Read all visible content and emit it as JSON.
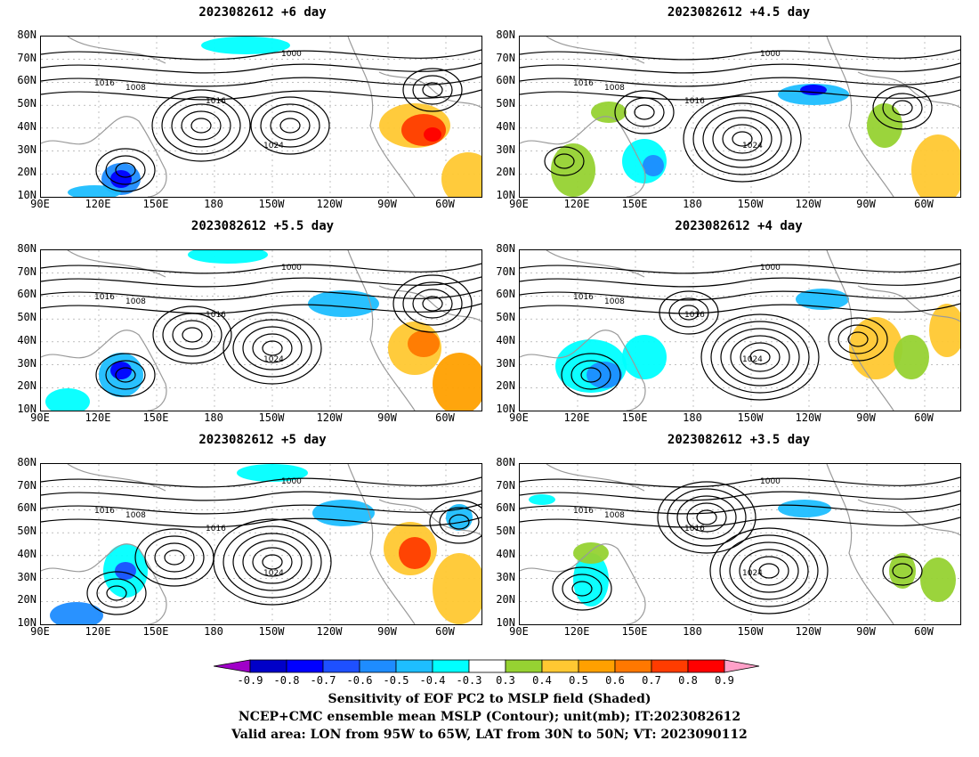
{
  "panels": [
    {
      "id": "p6",
      "title": "2023082612 +6 day"
    },
    {
      "id": "p45",
      "title": "2023082612 +4.5 day"
    },
    {
      "id": "p55",
      "title": "2023082612 +5.5 day"
    },
    {
      "id": "p4",
      "title": "2023082612 +4 day"
    },
    {
      "id": "p5",
      "title": "2023082612 +5 day"
    },
    {
      "id": "p35",
      "title": "2023082612 +3.5 day"
    }
  ],
  "lat_labels": [
    "80N",
    "70N",
    "60N",
    "50N",
    "40N",
    "30N",
    "20N",
    "10N"
  ],
  "lon_labels": [
    "90E",
    "120E",
    "150E",
    "180",
    "150W",
    "120W",
    "90W",
    "60W"
  ],
  "contour_labels": [
    "1000",
    "1008",
    "1016",
    "1024"
  ],
  "colorbar": {
    "labels": [
      "-0.9",
      "-0.8",
      "-0.7",
      "-0.6",
      "-0.5",
      "-0.4",
      "-0.3",
      "0.3",
      "0.4",
      "0.5",
      "0.6",
      "0.7",
      "0.8",
      "0.9"
    ],
    "colors": [
      "#a000c8",
      "#0000c8",
      "#0000ff",
      "#1e50ff",
      "#1e8cff",
      "#1ebeff",
      "#00ffff",
      "#ffffff",
      "#96d232",
      "#ffc832",
      "#ffa000",
      "#ff7800",
      "#ff3c00",
      "#ff0000",
      "#ffa0c8"
    ]
  },
  "caption": {
    "line1": "Sensitivity of EOF PC2 to MSLP field (Shaded)",
    "line2": "NCEP+CMC ensemble mean MSLP (Contour); unit(mb); IT:2023082612",
    "line3": "Valid area: LON from 95W to 65W, LAT from 30N to 50N; VT: 2023090112"
  }
}
